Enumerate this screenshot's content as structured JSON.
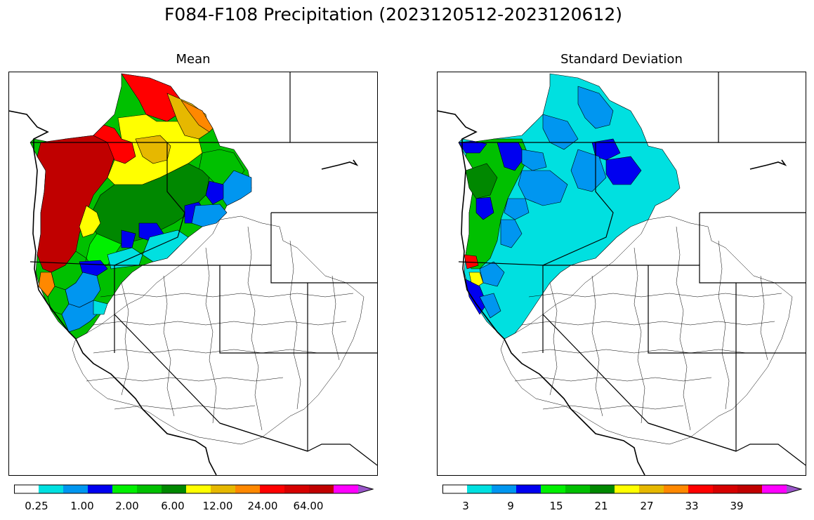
{
  "figure": {
    "title": "F084-F108 Precipitation (2023120512-2023120612)"
  },
  "panels": [
    {
      "id": "mean",
      "title": "Mean",
      "colorbar": {
        "colors": [
          "#ffffff",
          "#00e0e0",
          "#0096f0",
          "#0000f0",
          "#00f000",
          "#00c000",
          "#008800",
          "#ffff00",
          "#e6b800",
          "#ff8800",
          "#ff0000",
          "#d60000",
          "#c00000",
          "#ff00ff",
          "#9955c9"
        ],
        "labels": [
          "0.25",
          "1.00",
          "2.00",
          "6.00",
          "12.00",
          "24.00",
          "64.00"
        ],
        "extend": "max"
      }
    },
    {
      "id": "stddev",
      "title": "Standard Deviation",
      "colorbar": {
        "colors": [
          "#ffffff",
          "#00e0e0",
          "#0096f0",
          "#0000f0",
          "#00f000",
          "#00c000",
          "#008800",
          "#ffff00",
          "#e6b800",
          "#ff8800",
          "#ff0000",
          "#d60000",
          "#c00000",
          "#ff00ff",
          "#9955c9"
        ],
        "labels": [
          "3",
          "9",
          "15",
          "21",
          "27",
          "33",
          "39"
        ],
        "extend": "max"
      }
    }
  ]
}
